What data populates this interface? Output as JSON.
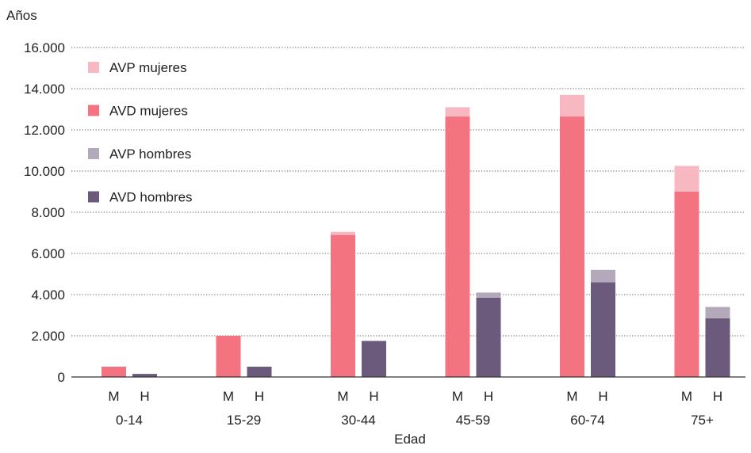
{
  "chart_data": {
    "type": "bar",
    "ylabel": "Años",
    "xlabel": "Edad",
    "ylim": [
      0,
      16000
    ],
    "y_ticks": [
      "0",
      "2.000",
      "4.000",
      "6.000",
      "8.000",
      "10.000",
      "12.000",
      "14.000",
      "16.000"
    ],
    "y_tick_values": [
      0,
      2000,
      4000,
      6000,
      8000,
      10000,
      12000,
      14000,
      16000
    ],
    "grid": true,
    "legend_position": "top-left",
    "categories": [
      "0-14",
      "15-29",
      "30-44",
      "45-59",
      "60-74",
      "75+"
    ],
    "sub_labels": [
      "M",
      "H"
    ],
    "stacked": true,
    "series": [
      {
        "name": "AVD mujeres",
        "group": "M",
        "color": "#f47381",
        "values": [
          500,
          2000,
          6900,
          12650,
          12650,
          9000
        ]
      },
      {
        "name": "AVP mujeres",
        "group": "M",
        "color": "#f8b8c1",
        "values": [
          0,
          0,
          150,
          450,
          1050,
          1250
        ]
      },
      {
        "name": "AVD hombres",
        "group": "H",
        "color": "#6b5a7b",
        "values": [
          150,
          500,
          1750,
          3850,
          4600,
          2850
        ]
      },
      {
        "name": "AVP hombres",
        "group": "H",
        "color": "#b4a9ba",
        "values": [
          0,
          0,
          0,
          250,
          600,
          550
        ]
      }
    ],
    "legend": [
      {
        "name": "AVP mujeres",
        "color": "#f8b8c1"
      },
      {
        "name": "AVD mujeres",
        "color": "#f47381"
      },
      {
        "name": "AVP hombres",
        "color": "#b4a9ba"
      },
      {
        "name": "AVD hombres",
        "color": "#6b5a7b"
      }
    ]
  }
}
